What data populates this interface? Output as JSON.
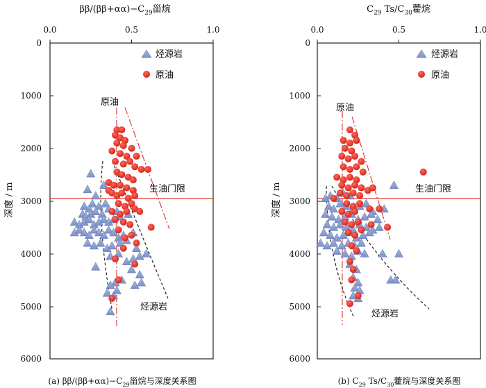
{
  "chart_data": [
    {
      "type": "scatter",
      "panel": "a",
      "title": "ββ/(ββ+αα)−C29甾烷",
      "title_parts": {
        "main": "ββ/(ββ+αα)−C",
        "sub": "29",
        "tail": "甾烷"
      },
      "caption": "(a) ββ/(ββ+αα)−C29甾烷与深度关系图",
      "caption_parts": {
        "main": "(a) ββ/(ββ+αα)−C",
        "sub": "29",
        "tail": "甾烷与深度关系图"
      },
      "ylabel": "深度 / m",
      "xlim": [
        0,
        1.0
      ],
      "ylim": [
        0,
        6000
      ],
      "x_ticks": [
        "0.0",
        "0.5",
        "1.0"
      ],
      "y_ticks": [
        "0",
        "1000",
        "2000",
        "3000",
        "4000",
        "5000",
        "6000"
      ],
      "legend": [
        {
          "name": "烃源岩",
          "marker": "triangle",
          "color": "#8b9fd1"
        },
        {
          "name": "原油",
          "marker": "circle",
          "color": "#e02a25"
        }
      ],
      "annotations": {
        "oil": "原油",
        "gate": "生油门限",
        "source": "烃源岩"
      },
      "oil_window_depth": 3000,
      "series": [
        {
          "name": "烃源岩",
          "points": [
            [
              0.25,
              2480
            ],
            [
              0.23,
              2780
            ],
            [
              0.33,
              2700
            ],
            [
              0.28,
              2900
            ],
            [
              0.26,
              3050
            ],
            [
              0.21,
              3100
            ],
            [
              0.24,
              3150
            ],
            [
              0.3,
              3100
            ],
            [
              0.34,
              3050
            ],
            [
              0.2,
              3250
            ],
            [
              0.22,
              3300
            ],
            [
              0.25,
              3250
            ],
            [
              0.28,
              3200
            ],
            [
              0.32,
              3250
            ],
            [
              0.36,
              3150
            ],
            [
              0.41,
              3200
            ],
            [
              0.15,
              3400
            ],
            [
              0.18,
              3450
            ],
            [
              0.21,
              3400
            ],
            [
              0.24,
              3350
            ],
            [
              0.27,
              3450
            ],
            [
              0.3,
              3400
            ],
            [
              0.33,
              3350
            ],
            [
              0.36,
              3400
            ],
            [
              0.39,
              3350
            ],
            [
              0.43,
              3300
            ],
            [
              0.48,
              3250
            ],
            [
              0.15,
              3600
            ],
            [
              0.18,
              3550
            ],
            [
              0.21,
              3600
            ],
            [
              0.24,
              3650
            ],
            [
              0.27,
              3550
            ],
            [
              0.3,
              3600
            ],
            [
              0.33,
              3650
            ],
            [
              0.36,
              3550
            ],
            [
              0.39,
              3600
            ],
            [
              0.42,
              3700
            ],
            [
              0.45,
              3650
            ],
            [
              0.51,
              3600
            ],
            [
              0.23,
              3800
            ],
            [
              0.27,
              3850
            ],
            [
              0.31,
              3800
            ],
            [
              0.35,
              3900
            ],
            [
              0.38,
              3850
            ],
            [
              0.43,
              3800
            ],
            [
              0.47,
              3750
            ],
            [
              0.53,
              3900
            ],
            [
              0.55,
              4050
            ],
            [
              0.59,
              4000
            ],
            [
              0.37,
              4050
            ],
            [
              0.42,
              4000
            ],
            [
              0.47,
              4150
            ],
            [
              0.51,
              4100
            ],
            [
              0.28,
              4250
            ],
            [
              0.5,
              4300
            ],
            [
              0.55,
              4400
            ],
            [
              0.44,
              4500
            ],
            [
              0.4,
              4550
            ],
            [
              0.37,
              4600
            ],
            [
              0.52,
              4600
            ],
            [
              0.56,
              4550
            ],
            [
              0.35,
              4750
            ],
            [
              0.39,
              4800
            ],
            [
              0.41,
              4700
            ],
            [
              0.37,
              5100
            ]
          ]
        },
        {
          "name": "原油",
          "points": [
            [
              0.41,
              1650
            ],
            [
              0.44,
              1650
            ],
            [
              0.4,
              1750
            ],
            [
              0.43,
              1800
            ],
            [
              0.46,
              1850
            ],
            [
              0.41,
              1900
            ],
            [
              0.45,
              1950
            ],
            [
              0.38,
              2050
            ],
            [
              0.43,
              2100
            ],
            [
              0.47,
              2150
            ],
            [
              0.5,
              2000
            ],
            [
              0.53,
              2150
            ],
            [
              0.4,
              2250
            ],
            [
              0.45,
              2300
            ],
            [
              0.49,
              2250
            ],
            [
              0.52,
              2350
            ],
            [
              0.56,
              2400
            ],
            [
              0.6,
              2400
            ],
            [
              0.41,
              2450
            ],
            [
              0.44,
              2500
            ],
            [
              0.48,
              2550
            ],
            [
              0.51,
              2600
            ],
            [
              0.36,
              2650
            ],
            [
              0.39,
              2700
            ],
            [
              0.43,
              2700
            ],
            [
              0.47,
              2750
            ],
            [
              0.51,
              2800
            ],
            [
              0.36,
              2800
            ],
            [
              0.38,
              2850
            ],
            [
              0.41,
              2900
            ],
            [
              0.44,
              2850
            ],
            [
              0.48,
              2950
            ],
            [
              0.52,
              2900
            ],
            [
              0.42,
              3050
            ],
            [
              0.46,
              3100
            ],
            [
              0.5,
              3050
            ],
            [
              0.38,
              3200
            ],
            [
              0.43,
              3250
            ],
            [
              0.47,
              3200
            ],
            [
              0.52,
              3150
            ],
            [
              0.55,
              3200
            ],
            [
              0.4,
              3350
            ],
            [
              0.45,
              3400
            ],
            [
              0.49,
              3450
            ],
            [
              0.62,
              3500
            ],
            [
              0.42,
              3550
            ],
            [
              0.46,
              3700
            ],
            [
              0.5,
              3650
            ],
            [
              0.53,
              3800
            ],
            [
              0.45,
              3900
            ],
            [
              0.4,
              4100
            ],
            [
              0.52,
              4200
            ],
            [
              0.42,
              4500
            ],
            [
              0.38,
              4850
            ]
          ]
        }
      ]
    },
    {
      "type": "scatter",
      "panel": "b",
      "title": "C29 Ts/C30藿烷",
      "title_parts": {
        "c": "C",
        "sub1": "29",
        "mid": " Ts/C",
        "sub2": "30",
        "tail": "藿烷"
      },
      "caption": "(b) C29 Ts/C30藿烷与深度关系图",
      "caption_parts": {
        "pre": "(b) C",
        "sub1": "29",
        "mid": " Ts/C",
        "sub2": "30",
        "tail": "藿烷与深度关系图"
      },
      "ylabel": "深度 / m",
      "xlim": [
        0,
        1.0
      ],
      "ylim": [
        0,
        6000
      ],
      "x_ticks": [
        "0.0",
        "0.5",
        "1.0"
      ],
      "y_ticks": [
        "0",
        "1000",
        "2000",
        "3000",
        "4000",
        "5000",
        "6000"
      ],
      "legend": [
        {
          "name": "烃源岩",
          "marker": "triangle",
          "color": "#8b9fd1"
        },
        {
          "name": "原油",
          "marker": "circle",
          "color": "#e02a25"
        }
      ],
      "annotations": {
        "oil": "原油",
        "gate": "生油门限",
        "source": "烃源岩"
      },
      "oil_window_depth": 3000,
      "series": [
        {
          "name": "烃源岩",
          "points": [
            [
              0.05,
              2950
            ],
            [
              0.08,
              2900
            ],
            [
              0.12,
              2950
            ],
            [
              0.16,
              2850
            ],
            [
              0.2,
              2900
            ],
            [
              0.07,
              3100
            ],
            [
              0.1,
              3150
            ],
            [
              0.14,
              3050
            ],
            [
              0.18,
              3100
            ],
            [
              0.22,
              3150
            ],
            [
              0.26,
              3100
            ],
            [
              0.3,
              3050
            ],
            [
              0.34,
              3200
            ],
            [
              0.05,
              3250
            ],
            [
              0.09,
              3300
            ],
            [
              0.13,
              3350
            ],
            [
              0.17,
              3300
            ],
            [
              0.21,
              3250
            ],
            [
              0.25,
              3350
            ],
            [
              0.29,
              3300
            ],
            [
              0.33,
              3250
            ],
            [
              0.37,
              3350
            ],
            [
              0.06,
              3450
            ],
            [
              0.1,
              3500
            ],
            [
              0.14,
              3450
            ],
            [
              0.18,
              3500
            ],
            [
              0.22,
              3550
            ],
            [
              0.26,
              3450
            ],
            [
              0.3,
              3500
            ],
            [
              0.34,
              3550
            ],
            [
              0.38,
              3500
            ],
            [
              0.04,
              3600
            ],
            [
              0.08,
              3650
            ],
            [
              0.12,
              3700
            ],
            [
              0.16,
              3650
            ],
            [
              0.2,
              3600
            ],
            [
              0.24,
              3700
            ],
            [
              0.28,
              3650
            ],
            [
              0.32,
              3600
            ],
            [
              0.02,
              3800
            ],
            [
              0.06,
              3850
            ],
            [
              0.1,
              3800
            ],
            [
              0.15,
              3850
            ],
            [
              0.19,
              3800
            ],
            [
              0.23,
              3850
            ],
            [
              0.27,
              3800
            ],
            [
              0.12,
              3950
            ],
            [
              0.17,
              4000
            ],
            [
              0.21,
              4050
            ],
            [
              0.25,
              3950
            ],
            [
              0.29,
              4000
            ],
            [
              0.4,
              4000
            ],
            [
              0.5,
              4000
            ],
            [
              0.2,
              4200
            ],
            [
              0.24,
              4300
            ],
            [
              0.22,
              4450
            ],
            [
              0.25,
              4550
            ],
            [
              0.23,
              4650
            ],
            [
              0.26,
              4700
            ],
            [
              0.22,
              4800
            ],
            [
              0.25,
              4850
            ],
            [
              0.47,
              2700
            ],
            [
              0.41,
              3150
            ],
            [
              0.45,
              4500
            ],
            [
              0.48,
              4500
            ]
          ]
        },
        {
          "name": "原油",
          "points": [
            [
              0.2,
              1650
            ],
            [
              0.23,
              1750
            ],
            [
              0.16,
              1850
            ],
            [
              0.2,
              1900
            ],
            [
              0.24,
              1850
            ],
            [
              0.17,
              2000
            ],
            [
              0.21,
              2050
            ],
            [
              0.15,
              2150
            ],
            [
              0.19,
              2200
            ],
            [
              0.23,
              2150
            ],
            [
              0.27,
              2250
            ],
            [
              0.16,
              2350
            ],
            [
              0.2,
              2400
            ],
            [
              0.24,
              2350
            ],
            [
              0.28,
              2450
            ],
            [
              0.12,
              2550
            ],
            [
              0.16,
              2600
            ],
            [
              0.2,
              2550
            ],
            [
              0.24,
              2600
            ],
            [
              0.15,
              2700
            ],
            [
              0.19,
              2750
            ],
            [
              0.23,
              2700
            ],
            [
              0.27,
              2750
            ],
            [
              0.31,
              2800
            ],
            [
              0.34,
              2750
            ],
            [
              0.14,
              2850
            ],
            [
              0.18,
              2900
            ],
            [
              0.22,
              2850
            ],
            [
              0.26,
              2900
            ],
            [
              0.1,
              2950
            ],
            [
              0.65,
              2450
            ],
            [
              0.18,
              3050
            ],
            [
              0.22,
              3100
            ],
            [
              0.26,
              3050
            ],
            [
              0.15,
              3200
            ],
            [
              0.19,
              3250
            ],
            [
              0.23,
              3200
            ],
            [
              0.32,
              3150
            ],
            [
              0.38,
              3150
            ],
            [
              0.17,
              3400
            ],
            [
              0.21,
              3450
            ],
            [
              0.25,
              3400
            ],
            [
              0.33,
              3450
            ],
            [
              0.43,
              3500
            ],
            [
              0.19,
              3600
            ],
            [
              0.23,
              3650
            ],
            [
              0.27,
              3550
            ],
            [
              0.21,
              3850
            ],
            [
              0.24,
              3950
            ],
            [
              0.2,
              4150
            ],
            [
              0.22,
              4300
            ],
            [
              0.21,
              4500
            ],
            [
              0.25,
              4800
            ],
            [
              0.2,
              4950
            ]
          ]
        }
      ]
    }
  ]
}
